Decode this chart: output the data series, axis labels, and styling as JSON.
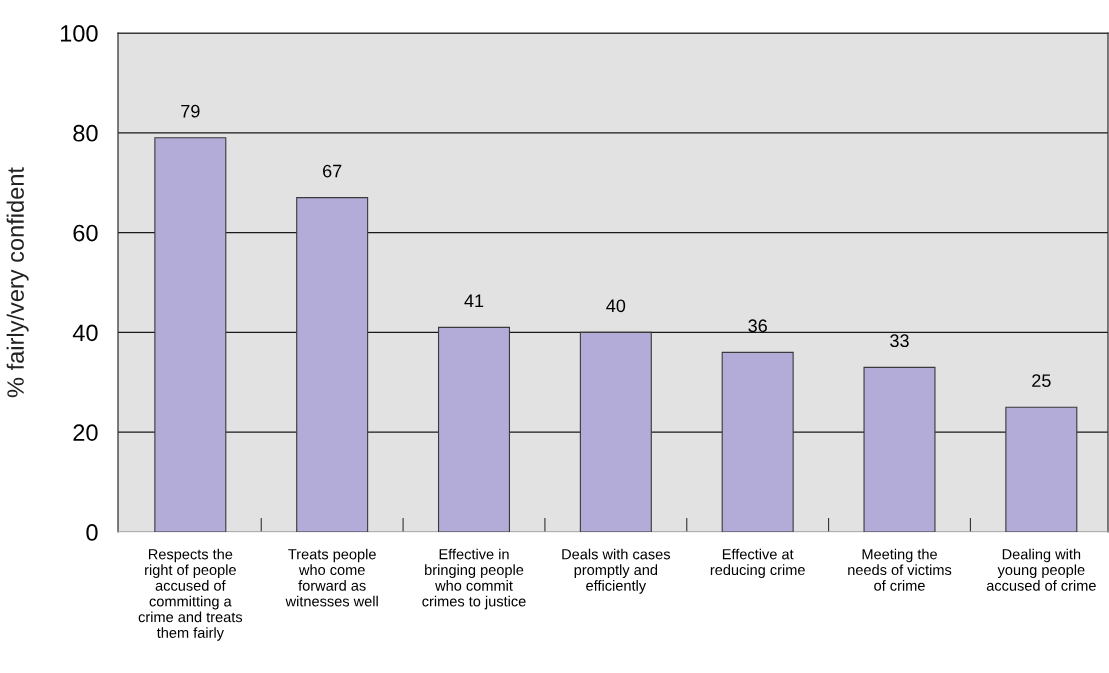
{
  "chart_data": {
    "type": "bar",
    "ylabel": "% fairly/very confident",
    "categories": [
      "Respects the\nright of people\naccused of\ncommitting a\ncrime and treats\nthem fairly",
      "Treats people\nwho come\nforward as\nwitnesses well",
      "Effective in\nbringing people\nwho commit\ncrimes to justice",
      "Deals with cases\npromptly and\nefficiently",
      "Effective at\nreducing crime",
      "Meeting the\nneeds of victims\nof crime",
      "Dealing with\nyoung people\naccused of crime"
    ],
    "values": [
      79,
      67,
      41,
      40,
      36,
      33,
      25
    ],
    "color": "#b3acd8",
    "ylim": [
      0,
      100
    ],
    "yticks": [
      0,
      20,
      40,
      60,
      80,
      100
    ],
    "grid": "y",
    "data_labels": true
  }
}
